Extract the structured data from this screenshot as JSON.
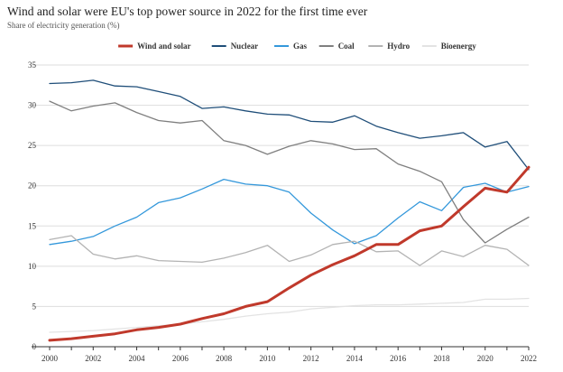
{
  "chart_data": {
    "type": "line",
    "title": "Wind and solar were EU's top power source in 2022 for the first time ever",
    "subtitle": "Share of electricity generation (%)",
    "xlabel": "",
    "ylabel": "",
    "x": [
      2000,
      2001,
      2002,
      2003,
      2004,
      2005,
      2006,
      2007,
      2008,
      2009,
      2010,
      2011,
      2012,
      2013,
      2014,
      2015,
      2016,
      2017,
      2018,
      2019,
      2020,
      2021,
      2022
    ],
    "xticks": [
      2000,
      2002,
      2004,
      2006,
      2008,
      2010,
      2012,
      2014,
      2016,
      2018,
      2020,
      2022
    ],
    "yticks": [
      0,
      5,
      10,
      15,
      20,
      25,
      30,
      35
    ],
    "ylim": [
      0,
      35
    ],
    "xlim": [
      2000,
      2022
    ],
    "grid": "horizontal",
    "legend_position": "top",
    "series": [
      {
        "name": "Wind and solar",
        "color": "#c0392b",
        "width": 3,
        "values": [
          0.8,
          1.0,
          1.3,
          1.6,
          2.1,
          2.4,
          2.8,
          3.5,
          4.1,
          5.0,
          5.6,
          7.3,
          8.9,
          10.2,
          11.3,
          12.7,
          12.7,
          14.4,
          15.0,
          17.4,
          19.7,
          19.2,
          22.3
        ]
      },
      {
        "name": "Nuclear",
        "color": "#1f4e79",
        "width": 1.3,
        "values": [
          32.7,
          32.8,
          33.1,
          32.4,
          32.3,
          31.7,
          31.1,
          29.6,
          29.8,
          29.3,
          28.9,
          28.8,
          28.0,
          27.9,
          28.7,
          27.4,
          26.6,
          25.9,
          26.2,
          26.6,
          24.8,
          25.5,
          22.0
        ]
      },
      {
        "name": "Gas",
        "color": "#3498db",
        "width": 1.3,
        "values": [
          12.7,
          13.1,
          13.7,
          15.0,
          16.1,
          17.9,
          18.5,
          19.6,
          20.8,
          20.2,
          20.0,
          19.2,
          16.6,
          14.5,
          12.8,
          13.8,
          16.0,
          18.0,
          16.9,
          19.8,
          20.3,
          19.2,
          19.9
        ]
      },
      {
        "name": "Coal",
        "color": "#7f7f7f",
        "width": 1.3,
        "values": [
          30.5,
          29.3,
          29.9,
          30.3,
          29.1,
          28.1,
          27.8,
          28.1,
          25.6,
          25.0,
          23.9,
          24.9,
          25.6,
          25.2,
          24.5,
          24.6,
          22.7,
          21.8,
          20.5,
          15.8,
          12.9,
          14.6,
          16.1
        ]
      },
      {
        "name": "Hydro",
        "color": "#b3b3b3",
        "width": 1.3,
        "values": [
          13.3,
          13.8,
          11.5,
          10.9,
          11.3,
          10.7,
          10.6,
          10.5,
          11.0,
          11.7,
          12.6,
          10.6,
          11.4,
          12.7,
          13.1,
          11.8,
          11.9,
          10.1,
          11.9,
          11.2,
          12.6,
          12.1,
          10.1
        ]
      },
      {
        "name": "Bioenergy",
        "color": "#e3e3e3",
        "width": 1.3,
        "values": [
          1.8,
          1.9,
          2.0,
          2.2,
          2.4,
          2.6,
          2.8,
          3.1,
          3.4,
          3.8,
          4.1,
          4.3,
          4.7,
          4.9,
          5.1,
          5.2,
          5.2,
          5.3,
          5.4,
          5.5,
          5.9,
          5.9,
          6.0
        ]
      }
    ]
  }
}
